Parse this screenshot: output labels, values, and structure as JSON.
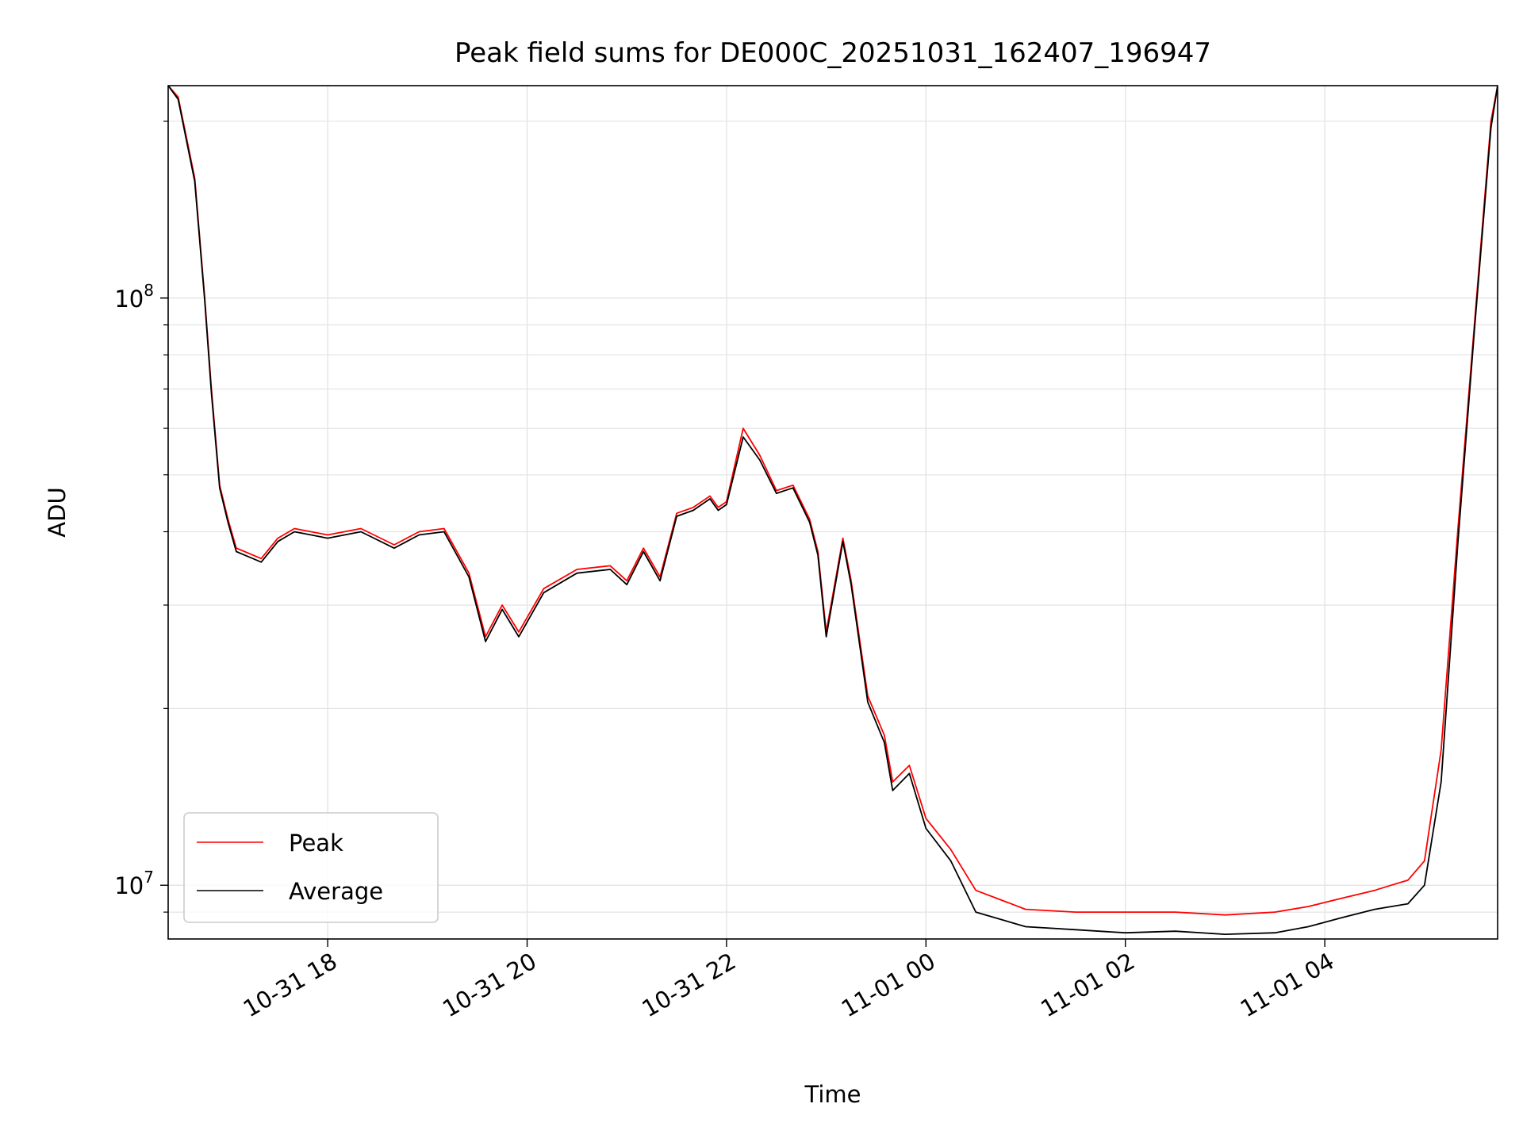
{
  "chart_data": {
    "type": "line",
    "title": "Peak field sums for DE000C_20251031_162407_196947",
    "xlabel": "Time",
    "ylabel": "ADU",
    "y_scale": "log",
    "ylim": [
      8100000,
      230000000
    ],
    "xlim": [
      "2025-10-31 16:24",
      "2025-11-01 05:44"
    ],
    "grid": true,
    "legend_position": "lower-left",
    "x_ticks": [
      {
        "value": "2025-10-31 18:00",
        "label": "10-31 18"
      },
      {
        "value": "2025-10-31 20:00",
        "label": "10-31 20"
      },
      {
        "value": "2025-10-31 22:00",
        "label": "10-31 22"
      },
      {
        "value": "2025-11-01 00:00",
        "label": "11-01 00"
      },
      {
        "value": "2025-11-01 02:00",
        "label": "11-01 02"
      },
      {
        "value": "2025-11-01 04:00",
        "label": "11-01 04"
      }
    ],
    "y_ticks": [
      {
        "value": 10000000,
        "base": "10",
        "exp": "7"
      },
      {
        "value": 100000000,
        "base": "10",
        "exp": "8"
      }
    ],
    "series": [
      {
        "name": "Peak",
        "color": "#ff0000",
        "x": [
          "2025-10-31 16:24",
          "2025-10-31 16:30",
          "2025-10-31 16:40",
          "2025-10-31 16:46",
          "2025-10-31 16:50",
          "2025-10-31 16:55",
          "2025-10-31 17:00",
          "2025-10-31 17:05",
          "2025-10-31 17:10",
          "2025-10-31 17:15",
          "2025-10-31 17:20",
          "2025-10-31 17:30",
          "2025-10-31 17:40",
          "2025-10-31 17:50",
          "2025-10-31 18:00",
          "2025-10-31 18:20",
          "2025-10-31 18:40",
          "2025-10-31 18:55",
          "2025-10-31 19:10",
          "2025-10-31 19:25",
          "2025-10-31 19:35",
          "2025-10-31 19:45",
          "2025-10-31 19:55",
          "2025-10-31 20:10",
          "2025-10-31 20:30",
          "2025-10-31 20:50",
          "2025-10-31 21:00",
          "2025-10-31 21:10",
          "2025-10-31 21:20",
          "2025-10-31 21:30",
          "2025-10-31 21:40",
          "2025-10-31 21:50",
          "2025-10-31 21:55",
          "2025-10-31 22:00",
          "2025-10-31 22:10",
          "2025-10-31 22:20",
          "2025-10-31 22:30",
          "2025-10-31 22:40",
          "2025-10-31 22:50",
          "2025-10-31 22:55",
          "2025-10-31 23:00",
          "2025-10-31 23:10",
          "2025-10-31 23:15",
          "2025-10-31 23:25",
          "2025-10-31 23:35",
          "2025-10-31 23:40",
          "2025-10-31 23:50",
          "2025-11-01 00:00",
          "2025-11-01 00:15",
          "2025-11-01 00:30",
          "2025-11-01 01:00",
          "2025-11-01 01:30",
          "2025-11-01 02:00",
          "2025-11-01 02:30",
          "2025-11-01 03:00",
          "2025-11-01 03:30",
          "2025-11-01 03:50",
          "2025-11-01 04:10",
          "2025-11-01 04:30",
          "2025-11-01 04:40",
          "2025-11-01 04:50",
          "2025-11-01 05:00",
          "2025-11-01 05:10",
          "2025-11-01 05:20",
          "2025-11-01 05:30",
          "2025-11-01 05:40",
          "2025-11-01 05:44"
        ],
        "y": [
          230000000,
          220000000,
          160000000,
          100000000,
          70000000,
          48000000,
          42000000,
          37500000,
          37000000,
          36500000,
          36000000,
          39000000,
          40500000,
          40000000,
          39500000,
          40500000,
          38000000,
          40000000,
          40500000,
          34000000,
          26500000,
          30000000,
          27000000,
          32000000,
          34500000,
          35000000,
          33000000,
          37500000,
          33500000,
          43000000,
          44000000,
          46000000,
          44000000,
          45000000,
          60000000,
          54000000,
          47000000,
          48000000,
          42000000,
          37000000,
          27000000,
          39000000,
          33000000,
          21000000,
          18000000,
          15000000,
          16000000,
          13000000,
          11500000,
          9800000,
          9100000,
          9000000,
          9000000,
          9000000,
          8900000,
          9000000,
          9200000,
          9500000,
          9800000,
          10000000,
          10200000,
          11000000,
          17000000,
          40000000,
          90000000,
          200000000,
          230000000
        ]
      },
      {
        "name": "Average",
        "color": "#000000",
        "x": [
          "2025-10-31 16:24",
          "2025-10-31 16:30",
          "2025-10-31 16:40",
          "2025-10-31 16:46",
          "2025-10-31 16:50",
          "2025-10-31 16:55",
          "2025-10-31 17:00",
          "2025-10-31 17:05",
          "2025-10-31 17:10",
          "2025-10-31 17:15",
          "2025-10-31 17:20",
          "2025-10-31 17:30",
          "2025-10-31 17:40",
          "2025-10-31 17:50",
          "2025-10-31 18:00",
          "2025-10-31 18:20",
          "2025-10-31 18:40",
          "2025-10-31 18:55",
          "2025-10-31 19:10",
          "2025-10-31 19:25",
          "2025-10-31 19:35",
          "2025-10-31 19:45",
          "2025-10-31 19:55",
          "2025-10-31 20:10",
          "2025-10-31 20:30",
          "2025-10-31 20:50",
          "2025-10-31 21:00",
          "2025-10-31 21:10",
          "2025-10-31 21:20",
          "2025-10-31 21:30",
          "2025-10-31 21:40",
          "2025-10-31 21:50",
          "2025-10-31 21:55",
          "2025-10-31 22:00",
          "2025-10-31 22:10",
          "2025-10-31 22:20",
          "2025-10-31 22:30",
          "2025-10-31 22:40",
          "2025-10-31 22:50",
          "2025-10-31 22:55",
          "2025-10-31 23:00",
          "2025-10-31 23:10",
          "2025-10-31 23:15",
          "2025-10-31 23:25",
          "2025-10-31 23:35",
          "2025-10-31 23:40",
          "2025-10-31 23:50",
          "2025-11-01 00:00",
          "2025-11-01 00:15",
          "2025-11-01 00:30",
          "2025-11-01 01:00",
          "2025-11-01 01:30",
          "2025-11-01 02:00",
          "2025-11-01 02:30",
          "2025-11-01 03:00",
          "2025-11-01 03:30",
          "2025-11-01 03:50",
          "2025-11-01 04:10",
          "2025-11-01 04:30",
          "2025-11-01 04:40",
          "2025-11-01 04:50",
          "2025-11-01 05:00",
          "2025-11-01 05:10",
          "2025-11-01 05:20",
          "2025-11-01 05:30",
          "2025-11-01 05:40",
          "2025-11-01 05:44"
        ],
        "y": [
          230000000,
          218000000,
          158000000,
          99000000,
          69000000,
          47500000,
          41500000,
          37000000,
          36500000,
          36000000,
          35500000,
          38500000,
          40000000,
          39500000,
          39000000,
          40000000,
          37500000,
          39500000,
          40000000,
          33500000,
          26000000,
          29500000,
          26500000,
          31500000,
          34000000,
          34500000,
          32500000,
          37000000,
          33000000,
          42500000,
          43500000,
          45500000,
          43500000,
          44500000,
          58000000,
          53000000,
          46500000,
          47500000,
          41500000,
          36500000,
          26500000,
          38500000,
          32500000,
          20500000,
          17500000,
          14500000,
          15500000,
          12500000,
          11000000,
          9000000,
          8500000,
          8400000,
          8300000,
          8350000,
          8250000,
          8300000,
          8500000,
          8800000,
          9100000,
          9200000,
          9300000,
          10000000,
          15000000,
          38000000,
          88000000,
          195000000,
          230000000
        ]
      }
    ]
  }
}
